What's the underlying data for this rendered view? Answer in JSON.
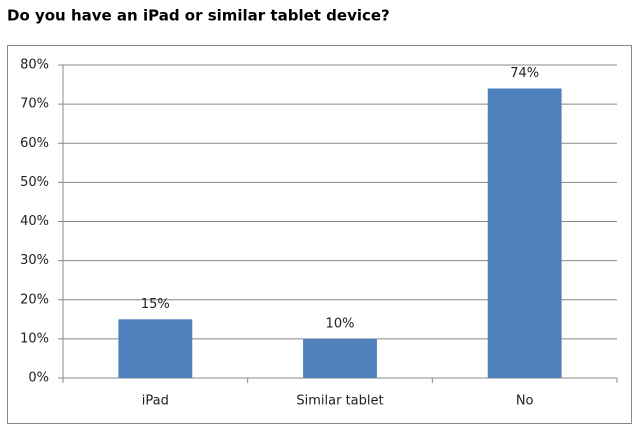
{
  "chart_data": {
    "type": "bar",
    "title": "Do you have an iPad or similar tablet device?",
    "categories": [
      "iPad",
      "Similar tablet",
      "No"
    ],
    "values": [
      15,
      10,
      74
    ],
    "value_labels": [
      "15%",
      "10%",
      "74%"
    ],
    "color": "#4f81bd",
    "ylim": [
      0,
      80
    ],
    "yticks": [
      {
        "value": 0,
        "label": "0%"
      },
      {
        "value": 10,
        "label": "10%"
      },
      {
        "value": 20,
        "label": "20%"
      },
      {
        "value": 30,
        "label": "30%"
      },
      {
        "value": 40,
        "label": "40%"
      },
      {
        "value": 50,
        "label": "50%"
      },
      {
        "value": 60,
        "label": "60%"
      },
      {
        "value": 70,
        "label": "70%"
      },
      {
        "value": 80,
        "label": "80%"
      }
    ],
    "grid": true
  }
}
